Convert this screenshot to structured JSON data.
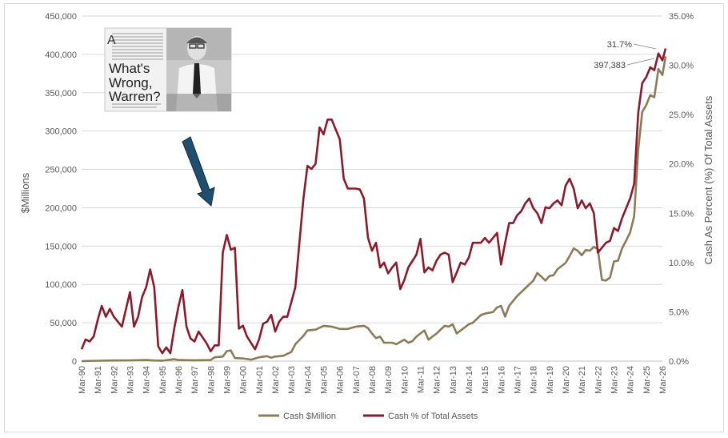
{
  "chart_data": {
    "type": "line",
    "title": "",
    "xlabel": "",
    "ylabel": "$Millions",
    "y2label": "Cash As Percent (%) Of Total Assets",
    "ylim": [
      0,
      450000
    ],
    "y2lim": [
      0,
      35
    ],
    "y_ticks": [
      "0",
      "50,000",
      "100,000",
      "150,000",
      "200,000",
      "250,000",
      "300,000",
      "350,000",
      "400,000",
      "450,000"
    ],
    "y2_ticks": [
      "0.0%",
      "5.0%",
      "10.0%",
      "15.0%",
      "20.0%",
      "25.0%",
      "30.0%",
      "35.0%"
    ],
    "x_ticks": [
      "Mar-90",
      "Mar-91",
      "Mar-92",
      "Mar-93",
      "Mar-94",
      "Mar-95",
      "Mar-96",
      "Mar-97",
      "Mar-98",
      "Mar-99",
      "Mar-00",
      "Mar-01",
      "Mar-02",
      "Mar-03",
      "Mar-04",
      "Mar-05",
      "Mar-06",
      "Mar-07",
      "Mar-08",
      "Mar-09",
      "Mar-10",
      "Mar-11",
      "Mar-12",
      "Mar-13",
      "Mar-14",
      "Mar-15",
      "Mar-16",
      "Mar-17",
      "Mar-18",
      "Mar-19",
      "Mar-20",
      "Mar-21",
      "Mar-22",
      "Mar-23",
      "Mar-24",
      "Mar-25",
      "Mar-26"
    ],
    "x_range": [
      1990,
      2026
    ],
    "grid": "horizontal",
    "legend": "bottom",
    "series": [
      {
        "name": "Cash $Million",
        "color": "#8c7b57",
        "axis": "left",
        "points": [
          [
            1990.0,
            0
          ],
          [
            1991.0,
            500
          ],
          [
            1992.0,
            800
          ],
          [
            1993.0,
            1000
          ],
          [
            1994.0,
            1500
          ],
          [
            1994.5,
            800
          ],
          [
            1995.0,
            600
          ],
          [
            1995.75,
            2500
          ],
          [
            1996.0,
            1500
          ],
          [
            1997.0,
            1200
          ],
          [
            1998.0,
            1500
          ],
          [
            1998.25,
            5000
          ],
          [
            1998.75,
            6000
          ],
          [
            1999.0,
            13000
          ],
          [
            1999.25,
            14000
          ],
          [
            1999.5,
            4000
          ],
          [
            2000.0,
            3500
          ],
          [
            2000.5,
            2000
          ],
          [
            2001.0,
            5000
          ],
          [
            2001.5,
            6500
          ],
          [
            2001.75,
            4500
          ],
          [
            2002.0,
            6000
          ],
          [
            2002.5,
            7000
          ],
          [
            2003.0,
            12000
          ],
          [
            2003.25,
            22000
          ],
          [
            2003.75,
            33000
          ],
          [
            2004.0,
            40000
          ],
          [
            2004.5,
            41000
          ],
          [
            2005.0,
            46000
          ],
          [
            2005.5,
            45000
          ],
          [
            2006.0,
            42000
          ],
          [
            2006.5,
            42000
          ],
          [
            2007.0,
            45000
          ],
          [
            2007.5,
            46000
          ],
          [
            2007.75,
            43000
          ],
          [
            2008.0,
            36000
          ],
          [
            2008.25,
            30000
          ],
          [
            2008.5,
            32000
          ],
          [
            2008.75,
            24000
          ],
          [
            2009.25,
            24000
          ],
          [
            2009.5,
            22000
          ],
          [
            2010.0,
            28000
          ],
          [
            2010.25,
            24000
          ],
          [
            2010.5,
            26000
          ],
          [
            2010.75,
            32000
          ],
          [
            2011.25,
            40000
          ],
          [
            2011.5,
            28000
          ],
          [
            2012.0,
            36000
          ],
          [
            2012.5,
            46000
          ],
          [
            2012.75,
            45000
          ],
          [
            2013.0,
            48000
          ],
          [
            2013.25,
            36000
          ],
          [
            2013.5,
            40000
          ],
          [
            2014.0,
            48000
          ],
          [
            2014.25,
            50000
          ],
          [
            2014.75,
            60000
          ],
          [
            2015.0,
            62000
          ],
          [
            2015.5,
            64000
          ],
          [
            2015.75,
            70000
          ],
          [
            2016.0,
            72000
          ],
          [
            2016.25,
            58000
          ],
          [
            2016.5,
            72000
          ],
          [
            2017.0,
            85000
          ],
          [
            2017.25,
            90000
          ],
          [
            2017.5,
            95000
          ],
          [
            2018.0,
            105000
          ],
          [
            2018.25,
            115000
          ],
          [
            2018.5,
            110000
          ],
          [
            2018.75,
            105000
          ],
          [
            2019.0,
            111000
          ],
          [
            2019.25,
            112000
          ],
          [
            2019.5,
            120000
          ],
          [
            2020.0,
            128000
          ],
          [
            2020.25,
            137000
          ],
          [
            2020.5,
            147000
          ],
          [
            2020.75,
            144000
          ],
          [
            2021.0,
            138000
          ],
          [
            2021.25,
            145000
          ],
          [
            2021.5,
            144000
          ],
          [
            2021.75,
            149000
          ],
          [
            2022.0,
            146000
          ],
          [
            2022.25,
            106000
          ],
          [
            2022.5,
            105000
          ],
          [
            2022.75,
            109000
          ],
          [
            2023.0,
            130000
          ],
          [
            2023.25,
            131000
          ],
          [
            2023.5,
            147000
          ],
          [
            2023.75,
            157000
          ],
          [
            2024.0,
            168000
          ],
          [
            2024.25,
            189000
          ],
          [
            2024.5,
            276000
          ],
          [
            2024.75,
            325000
          ],
          [
            2025.0,
            334000
          ],
          [
            2025.25,
            347000
          ],
          [
            2025.5,
            344000
          ],
          [
            2025.75,
            381000
          ],
          [
            2026.0,
            373000
          ],
          [
            2026.2,
            397383
          ]
        ]
      },
      {
        "name": "Cash % of Total Assets",
        "color": "#8b1a2b",
        "axis": "right",
        "points": [
          [
            1990.0,
            1.2
          ],
          [
            1990.25,
            2.2
          ],
          [
            1990.5,
            2.0
          ],
          [
            1990.75,
            2.5
          ],
          [
            1991.0,
            4.2
          ],
          [
            1991.25,
            5.6
          ],
          [
            1991.5,
            4.5
          ],
          [
            1991.75,
            5.3
          ],
          [
            1992.0,
            4.5
          ],
          [
            1992.5,
            3.5
          ],
          [
            1992.75,
            5.3
          ],
          [
            1993.0,
            7.0
          ],
          [
            1993.25,
            3.5
          ],
          [
            1993.5,
            4.5
          ],
          [
            1993.75,
            6.5
          ],
          [
            1994.0,
            7.5
          ],
          [
            1994.25,
            9.3
          ],
          [
            1994.5,
            7.5
          ],
          [
            1994.75,
            1.5
          ],
          [
            1995.0,
            0.8
          ],
          [
            1995.25,
            1.4
          ],
          [
            1995.5,
            0.8
          ],
          [
            1995.75,
            3.4
          ],
          [
            1996.0,
            5.5
          ],
          [
            1996.25,
            7.2
          ],
          [
            1996.5,
            3.5
          ],
          [
            1996.75,
            2.3
          ],
          [
            1997.0,
            2.0
          ],
          [
            1997.25,
            3.0
          ],
          [
            1997.5,
            2.4
          ],
          [
            1997.75,
            1.8
          ],
          [
            1998.0,
            1.0
          ],
          [
            1998.25,
            1.6
          ],
          [
            1998.5,
            1.6
          ],
          [
            1998.75,
            11.0
          ],
          [
            1999.0,
            12.8
          ],
          [
            1999.25,
            11.3
          ],
          [
            1999.5,
            11.5
          ],
          [
            1999.75,
            3.3
          ],
          [
            2000.0,
            3.6
          ],
          [
            2000.25,
            2.5
          ],
          [
            2000.75,
            1.2
          ],
          [
            2001.0,
            2.2
          ],
          [
            2001.25,
            3.8
          ],
          [
            2001.5,
            4.0
          ],
          [
            2001.75,
            4.7
          ],
          [
            2002.0,
            3.0
          ],
          [
            2002.25,
            4.0
          ],
          [
            2002.5,
            4.5
          ],
          [
            2002.75,
            4.5
          ],
          [
            2003.0,
            6.0
          ],
          [
            2003.25,
            7.5
          ],
          [
            2003.75,
            16.5
          ],
          [
            2004.0,
            19.8
          ],
          [
            2004.25,
            19.5
          ],
          [
            2004.5,
            20.0
          ],
          [
            2004.75,
            23.7
          ],
          [
            2005.0,
            23.0
          ],
          [
            2005.25,
            24.5
          ],
          [
            2005.5,
            24.5
          ],
          [
            2005.75,
            23.5
          ],
          [
            2006.0,
            22.5
          ],
          [
            2006.25,
            18.5
          ],
          [
            2006.5,
            17.5
          ],
          [
            2007.0,
            17.5
          ],
          [
            2007.25,
            17.4
          ],
          [
            2007.5,
            16.5
          ],
          [
            2007.75,
            12.5
          ],
          [
            2008.0,
            11.2
          ],
          [
            2008.25,
            12.0
          ],
          [
            2008.5,
            9.5
          ],
          [
            2008.75,
            10.0
          ],
          [
            2009.0,
            8.9
          ],
          [
            2009.25,
            9.5
          ],
          [
            2009.5,
            10.0
          ],
          [
            2009.75,
            7.3
          ],
          [
            2010.0,
            8.2
          ],
          [
            2010.25,
            9.5
          ],
          [
            2010.75,
            10.8
          ],
          [
            2011.0,
            12.4
          ],
          [
            2011.25,
            9.0
          ],
          [
            2011.5,
            9.5
          ],
          [
            2011.75,
            9.2
          ],
          [
            2012.0,
            10.2
          ],
          [
            2012.25,
            10.8
          ],
          [
            2012.5,
            11.0
          ],
          [
            2012.75,
            10.8
          ],
          [
            2013.0,
            8.0
          ],
          [
            2013.25,
            9.0
          ],
          [
            2013.5,
            10.0
          ],
          [
            2013.75,
            9.8
          ],
          [
            2014.0,
            10.5
          ],
          [
            2014.25,
            12.0
          ],
          [
            2014.5,
            12.0
          ],
          [
            2014.75,
            12.0
          ],
          [
            2015.0,
            12.5
          ],
          [
            2015.25,
            12.0
          ],
          [
            2015.75,
            13.0
          ],
          [
            2016.0,
            9.8
          ],
          [
            2016.25,
            12.0
          ],
          [
            2016.5,
            14.0
          ],
          [
            2016.75,
            14.0
          ],
          [
            2017.0,
            14.8
          ],
          [
            2017.25,
            15.2
          ],
          [
            2017.5,
            16.0
          ],
          [
            2017.75,
            16.5
          ],
          [
            2018.0,
            15.5
          ],
          [
            2018.25,
            15.0
          ],
          [
            2018.5,
            14.0
          ],
          [
            2018.75,
            15.6
          ],
          [
            2019.0,
            15.5
          ],
          [
            2019.25,
            16.0
          ],
          [
            2019.5,
            16.3
          ],
          [
            2019.75,
            15.8
          ],
          [
            2020.0,
            17.8
          ],
          [
            2020.25,
            18.5
          ],
          [
            2020.5,
            17.5
          ],
          [
            2020.75,
            15.5
          ],
          [
            2021.0,
            16.3
          ],
          [
            2021.25,
            15.5
          ],
          [
            2021.5,
            16.0
          ],
          [
            2021.75,
            15.0
          ],
          [
            2022.0,
            11.0
          ],
          [
            2022.25,
            11.5
          ],
          [
            2022.5,
            12.0
          ],
          [
            2022.75,
            12.2
          ],
          [
            2023.0,
            13.5
          ],
          [
            2023.25,
            13.2
          ],
          [
            2023.5,
            14.5
          ],
          [
            2023.75,
            15.5
          ],
          [
            2024.0,
            16.5
          ],
          [
            2024.25,
            18.0
          ],
          [
            2024.5,
            25.2
          ],
          [
            2024.75,
            28.2
          ],
          [
            2025.0,
            28.8
          ],
          [
            2025.25,
            29.8
          ],
          [
            2025.5,
            29.5
          ],
          [
            2025.75,
            31.2
          ],
          [
            2026.0,
            30.5
          ],
          [
            2026.2,
            31.7
          ]
        ]
      }
    ],
    "annotations": [
      {
        "text": "31.7%",
        "series": "Cash % of Total Assets"
      },
      {
        "text": "397,383",
        "series": "Cash $Million"
      }
    ],
    "inset_image": {
      "headline": "What's Wrong, Warren?",
      "description": "magazine clipping with portrait photo"
    },
    "arrow_color": "#1f4e6e"
  }
}
